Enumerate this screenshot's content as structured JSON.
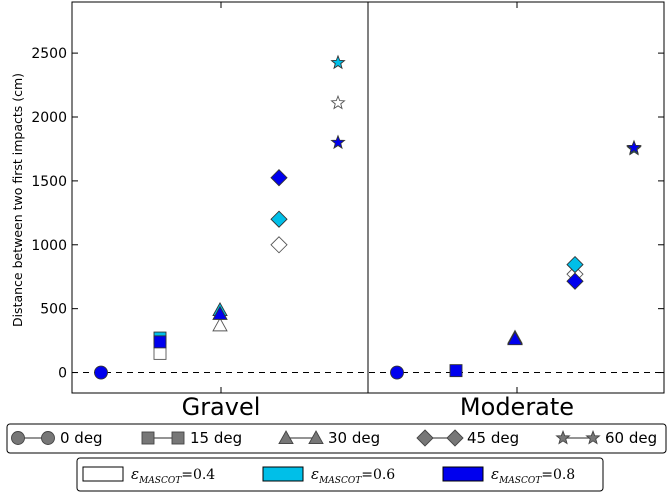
{
  "chart_data": {
    "type": "scatter",
    "ylabel": "Distance between two first impacts (cm)",
    "ylim": [
      -160,
      2900
    ],
    "yticks": [
      0,
      500,
      1000,
      1500,
      2000,
      2500
    ],
    "ytick_labels": [
      "0",
      "500",
      "1000",
      "1500",
      "2000",
      "2500"
    ],
    "panels": [
      {
        "name": "Gravel",
        "points": [
          {
            "angle": "0 deg",
            "eps": "0.8",
            "y": 0
          },
          {
            "angle": "15 deg",
            "eps": "0.4",
            "y": 150
          },
          {
            "angle": "15 deg",
            "eps": "0.6",
            "y": 270
          },
          {
            "angle": "15 deg",
            "eps": "0.8",
            "y": 240
          },
          {
            "angle": "30 deg",
            "eps": "0.4",
            "y": 370
          },
          {
            "angle": "30 deg",
            "eps": "0.6",
            "y": 490
          },
          {
            "angle": "30 deg",
            "eps": "0.8",
            "y": 460
          },
          {
            "angle": "45 deg",
            "eps": "0.4",
            "y": 1000
          },
          {
            "angle": "45 deg",
            "eps": "0.6",
            "y": 1200
          },
          {
            "angle": "45 deg",
            "eps": "0.8",
            "y": 1525
          },
          {
            "angle": "60 deg",
            "eps": "0.4",
            "y": 2110
          },
          {
            "angle": "60 deg",
            "eps": "0.6",
            "y": 2425
          },
          {
            "angle": "60 deg",
            "eps": "0.8",
            "y": 1800
          }
        ]
      },
      {
        "name": "Moderate",
        "points": [
          {
            "angle": "0 deg",
            "eps": "0.8",
            "y": 0
          },
          {
            "angle": "15 deg",
            "eps": "0.8",
            "y": 15
          },
          {
            "angle": "30 deg",
            "eps": "0.4",
            "y": 275
          },
          {
            "angle": "30 deg",
            "eps": "0.6",
            "y": 268
          },
          {
            "angle": "30 deg",
            "eps": "0.8",
            "y": 262
          },
          {
            "angle": "45 deg",
            "eps": "0.4",
            "y": 770
          },
          {
            "angle": "45 deg",
            "eps": "0.6",
            "y": 845
          },
          {
            "angle": "45 deg",
            "eps": "0.8",
            "y": 715
          },
          {
            "angle": "60 deg",
            "eps": "0.4",
            "y": 1755
          },
          {
            "angle": "60 deg",
            "eps": "0.6",
            "y": 1750
          },
          {
            "angle": "60 deg",
            "eps": "0.8",
            "y": 1760
          }
        ]
      }
    ],
    "angle_legend": [
      {
        "label": "0 deg",
        "marker": "circle"
      },
      {
        "label": "15 deg",
        "marker": "square"
      },
      {
        "label": "30 deg",
        "marker": "triangle"
      },
      {
        "label": "45 deg",
        "marker": "diamond"
      },
      {
        "label": "60 deg",
        "marker": "star"
      }
    ],
    "eps_legend": [
      {
        "key": "0.4",
        "symbol": "ε",
        "subscript": "MASCOT",
        "label": "=0.4",
        "color": "#ffffff"
      },
      {
        "key": "0.6",
        "symbol": "ε",
        "subscript": "MASCOT",
        "label": "=0.6",
        "color": "#00bfe8"
      },
      {
        "key": "0.8",
        "symbol": "ε",
        "subscript": "MASCOT",
        "label": "=0.8",
        "color": "#0000ee"
      }
    ],
    "legend_placement": "bottom",
    "grid": false
  }
}
